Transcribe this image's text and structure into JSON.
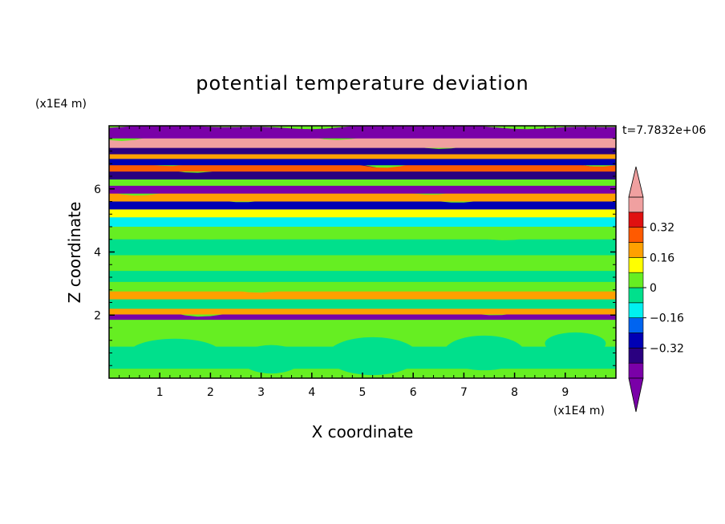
{
  "chart_data": {
    "type": "heatmap",
    "title": "potential temperature deviation",
    "xlabel": "X coordinate",
    "ylabel": "Z coordinate",
    "x_unit": "(x1E4 m)",
    "y_unit": "(x1E4 m)",
    "time_label": "t=7.7832e+06",
    "xlim": [
      0,
      10
    ],
    "ylim": [
      0,
      8
    ],
    "x_ticks": [
      1,
      2,
      3,
      4,
      5,
      6,
      7,
      8,
      9
    ],
    "y_ticks": [
      2,
      4,
      6
    ],
    "x_tick_labels": [
      "1",
      "2",
      "3",
      "4",
      "5",
      "6",
      "7",
      "8",
      "9"
    ],
    "y_tick_labels": [
      "2",
      "4",
      "6"
    ],
    "colorbar": {
      "levels": [
        -0.48,
        -0.4,
        -0.32,
        -0.24,
        -0.16,
        -0.08,
        0,
        0.08,
        0.16,
        0.24,
        0.32,
        0.4,
        0.48
      ],
      "tick_values": [
        -0.32,
        -0.16,
        0,
        0.16,
        0.32
      ],
      "tick_labels": [
        "−0.32",
        "−0.16",
        "0",
        "0.16",
        "0.32"
      ],
      "colors": [
        "#7a00a8",
        "#2a0080",
        "#0000b4",
        "#0064f0",
        "#00f0f0",
        "#00e08c",
        "#66ee22",
        "#ffff00",
        "#ffa000",
        "#ff5a00",
        "#e01010",
        "#f0a0a0"
      ],
      "extend": "both"
    },
    "bands": [
      {
        "z": 7.85,
        "value": -0.5
      },
      {
        "z": 7.6,
        "value": 0.45
      },
      {
        "z": 7.3,
        "value": -0.4
      },
      {
        "z": 7.1,
        "value": 0.2
      },
      {
        "z": 6.95,
        "value": -0.3
      },
      {
        "z": 6.75,
        "value": 0.25
      },
      {
        "z": 6.55,
        "value": -0.35
      },
      {
        "z": 6.3,
        "value": 0.05
      },
      {
        "z": 6.1,
        "value": -0.5
      },
      {
        "z": 5.85,
        "value": 0.2
      },
      {
        "z": 5.6,
        "value": -0.3
      },
      {
        "z": 5.35,
        "value": 0.1
      },
      {
        "z": 5.1,
        "value": -0.1
      },
      {
        "z": 4.8,
        "value": 0.05
      },
      {
        "z": 4.4,
        "value": -0.05
      },
      {
        "z": 3.9,
        "value": 0.04
      },
      {
        "z": 3.4,
        "value": -0.03
      },
      {
        "z": 3.05,
        "value": 0.04
      },
      {
        "z": 2.75,
        "value": 0.18
      },
      {
        "z": 2.5,
        "value": -0.06
      },
      {
        "z": 2.2,
        "value": 0.22
      },
      {
        "z": 2.02,
        "value": -0.45
      },
      {
        "z": 1.85,
        "value": 0.05
      },
      {
        "z": 1.0,
        "value": -0.03
      },
      {
        "z": 0.3,
        "value": 0.03
      }
    ]
  }
}
